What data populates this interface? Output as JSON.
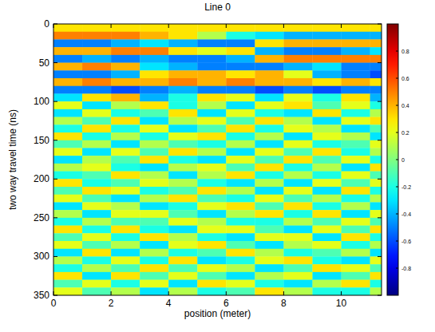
{
  "chart_data": {
    "type": "heatmap",
    "title": "Line 0",
    "x_label": "position (meter)",
    "y_label": "two way travel time (ns)",
    "xlim": [
      0,
      11.4
    ],
    "ylim": [
      350,
      0
    ],
    "xticks": [
      0,
      2,
      4,
      6,
      8,
      10
    ],
    "yticks": [
      0,
      50,
      100,
      150,
      200,
      250,
      300,
      350
    ],
    "x_edges": [
      0,
      1,
      2,
      3,
      4,
      5,
      6,
      7,
      8,
      9,
      10,
      11,
      11.4
    ],
    "y_edges": [
      0,
      10,
      20,
      30,
      40,
      50,
      60,
      70,
      80,
      90,
      100,
      110,
      120,
      130,
      140,
      150,
      160,
      170,
      180,
      190,
      200,
      210,
      220,
      230,
      240,
      250,
      260,
      270,
      280,
      290,
      300,
      310,
      320,
      330,
      340,
      350
    ],
    "color_range": [
      -1,
      1
    ],
    "color_ticks": [
      -0.8,
      -0.6,
      -0.4,
      -0.2,
      0,
      0.2,
      0.4,
      0.6,
      0.8
    ],
    "cells": [
      [
        0.3,
        0.3,
        0.3,
        0.3,
        0.3,
        0.3,
        0.3,
        0.3,
        0.3,
        0.3,
        0.3,
        0.3
      ],
      [
        0.5,
        0.5,
        0.5,
        0.4,
        0.3,
        0.1,
        -0.2,
        -0.3,
        -0.4,
        -0.4,
        -0.4,
        -0.4
      ],
      [
        -0.5,
        -0.5,
        -0.4,
        -0.3,
        -0.4,
        -0.5,
        -0.5,
        0.3,
        0.4,
        0.4,
        0.4,
        0.4
      ],
      [
        0.4,
        0.4,
        0.5,
        0.5,
        0.3,
        0.2,
        0.3,
        -0.4,
        -0.5,
        -0.5,
        -0.4,
        -0.3
      ],
      [
        -0.5,
        -0.4,
        -0.5,
        -0.4,
        -0.5,
        -0.5,
        -0.4,
        0.4,
        0.5,
        0.5,
        0.5,
        0.5
      ],
      [
        0.4,
        0.5,
        0.4,
        -0.3,
        -0.4,
        -0.5,
        -0.5,
        -0.5,
        -0.4,
        -0.3,
        -0.5,
        -0.5
      ],
      [
        -0.5,
        -0.5,
        -0.4,
        0.3,
        0.4,
        0.4,
        0.3,
        0.4,
        0.2,
        -0.4,
        -0.5,
        -0.6
      ],
      [
        0.4,
        0.5,
        0.4,
        0.4,
        0.5,
        0.4,
        0.5,
        0.4,
        0.4,
        0.3,
        0.4,
        0.3
      ],
      [
        -0.5,
        -0.5,
        -0.6,
        -0.5,
        -0.4,
        -0.5,
        -0.5,
        -0.6,
        -0.5,
        -0.6,
        -0.5,
        -0.5
      ],
      [
        -0.3,
        0.3,
        0.4,
        -0.4,
        -0.2,
        0.3,
        0.2,
        -0.3,
        0.2,
        -0.2,
        0.3,
        -0.4
      ],
      [
        0.2,
        -0.3,
        0.1,
        0.3,
        -0.2,
        0.1,
        -0.3,
        0.2,
        0.3,
        -0.1,
        0.2,
        -0.2
      ],
      [
        -0.3,
        0.2,
        -0.2,
        -0.1,
        0.3,
        -0.3,
        0.2,
        -0.2,
        -0.3,
        0.3,
        -0.2,
        0.1
      ],
      [
        0.1,
        -0.1,
        0.3,
        -0.3,
        0.1,
        0.2,
        -0.1,
        0.3,
        0.1,
        -0.3,
        0.2,
        0.3
      ],
      [
        -0.2,
        0.3,
        -0.2,
        0.2,
        -0.3,
        -0.1,
        0.3,
        -0.2,
        0.2,
        0.1,
        -0.3,
        -0.1
      ],
      [
        0.3,
        -0.2,
        0.1,
        -0.2,
        0.2,
        0.3,
        -0.2,
        0.1,
        -0.3,
        0.2,
        0.1,
        -0.3
      ],
      [
        -0.1,
        0.1,
        -0.3,
        0.1,
        -0.1,
        -0.2,
        0.1,
        -0.3,
        0.2,
        -0.2,
        -0.1,
        0.2
      ],
      [
        0.2,
        -0.3,
        0.2,
        -0.1,
        0.3,
        0.1,
        -0.3,
        0.2,
        -0.1,
        0.3,
        -0.2,
        0.1
      ],
      [
        -0.3,
        0.1,
        -0.1,
        0.3,
        -0.2,
        -0.3,
        0.2,
        -0.1,
        0.3,
        -0.1,
        0.2,
        -0.2
      ],
      [
        0.1,
        0.2,
        -0.2,
        -0.3,
        0.1,
        0.2,
        -0.1,
        0.3,
        -0.2,
        0.1,
        -0.3,
        0.3
      ],
      [
        -0.2,
        -0.1,
        0.3,
        0.1,
        -0.3,
        0.1,
        0.3,
        -0.2,
        0.1,
        -0.2,
        0.2,
        -0.1
      ],
      [
        0.3,
        -0.2,
        -0.1,
        0.2,
        0.1,
        -0.2,
        -0.3,
        0.1,
        -0.3,
        0.2,
        -0.1,
        0.2
      ],
      [
        -0.1,
        0.3,
        0.2,
        -0.2,
        -0.1,
        0.3,
        0.1,
        -0.3,
        0.2,
        -0.3,
        0.3,
        -0.2
      ],
      [
        0.2,
        -0.1,
        -0.3,
        0.1,
        0.3,
        -0.1,
        -0.2,
        0.2,
        -0.1,
        0.1,
        -0.2,
        0.1
      ],
      [
        -0.3,
        0.2,
        0.1,
        -0.3,
        -0.2,
        0.2,
        0.3,
        -0.1,
        0.3,
        -0.2,
        0.1,
        -0.3
      ],
      [
        0.1,
        -0.3,
        0.2,
        0.2,
        -0.1,
        -0.3,
        0.1,
        0.3,
        -0.2,
        0.3,
        -0.3,
        0.2
      ],
      [
        -0.2,
        0.1,
        -0.1,
        -0.1,
        0.2,
        0.1,
        -0.2,
        -0.2,
        0.1,
        -0.1,
        0.2,
        -0.1
      ],
      [
        0.3,
        -0.2,
        0.3,
        -0.2,
        -0.3,
        0.2,
        0.2,
        -0.1,
        -0.3,
        0.2,
        -0.1,
        0.3
      ],
      [
        -0.1,
        0.2,
        -0.2,
        0.3,
        0.1,
        -0.2,
        -0.3,
        0.2,
        0.2,
        -0.3,
        0.3,
        -0.2
      ],
      [
        0.2,
        -0.1,
        0.1,
        -0.3,
        0.2,
        0.3,
        -0.1,
        -0.3,
        0.1,
        0.2,
        -0.2,
        0.1
      ],
      [
        -0.3,
        0.3,
        -0.3,
        0.1,
        -0.2,
        -0.1,
        0.3,
        0.1,
        -0.2,
        -0.1,
        0.1,
        -0.3
      ],
      [
        0.1,
        -0.2,
        0.2,
        -0.2,
        0.3,
        -0.3,
        -0.2,
        0.2,
        0.3,
        -0.2,
        -0.3,
        0.2
      ],
      [
        -0.2,
        0.1,
        -0.1,
        0.3,
        -0.1,
        0.2,
        0.1,
        -0.3,
        -0.1,
        0.3,
        0.2,
        -0.1
      ],
      [
        0.3,
        -0.3,
        0.3,
        -0.1,
        0.2,
        -0.1,
        -0.3,
        0.1,
        0.2,
        -0.3,
        -0.1,
        0.3
      ],
      [
        -0.1,
        0.2,
        -0.2,
        0.2,
        -0.3,
        0.3,
        0.2,
        -0.2,
        -0.3,
        0.1,
        0.3,
        -0.2
      ],
      [
        0.2,
        -0.1,
        0.1,
        -0.3,
        0.1,
        -0.2,
        -0.1,
        0.3,
        0.1,
        -0.2,
        -0.2,
        0.1
      ]
    ]
  }
}
